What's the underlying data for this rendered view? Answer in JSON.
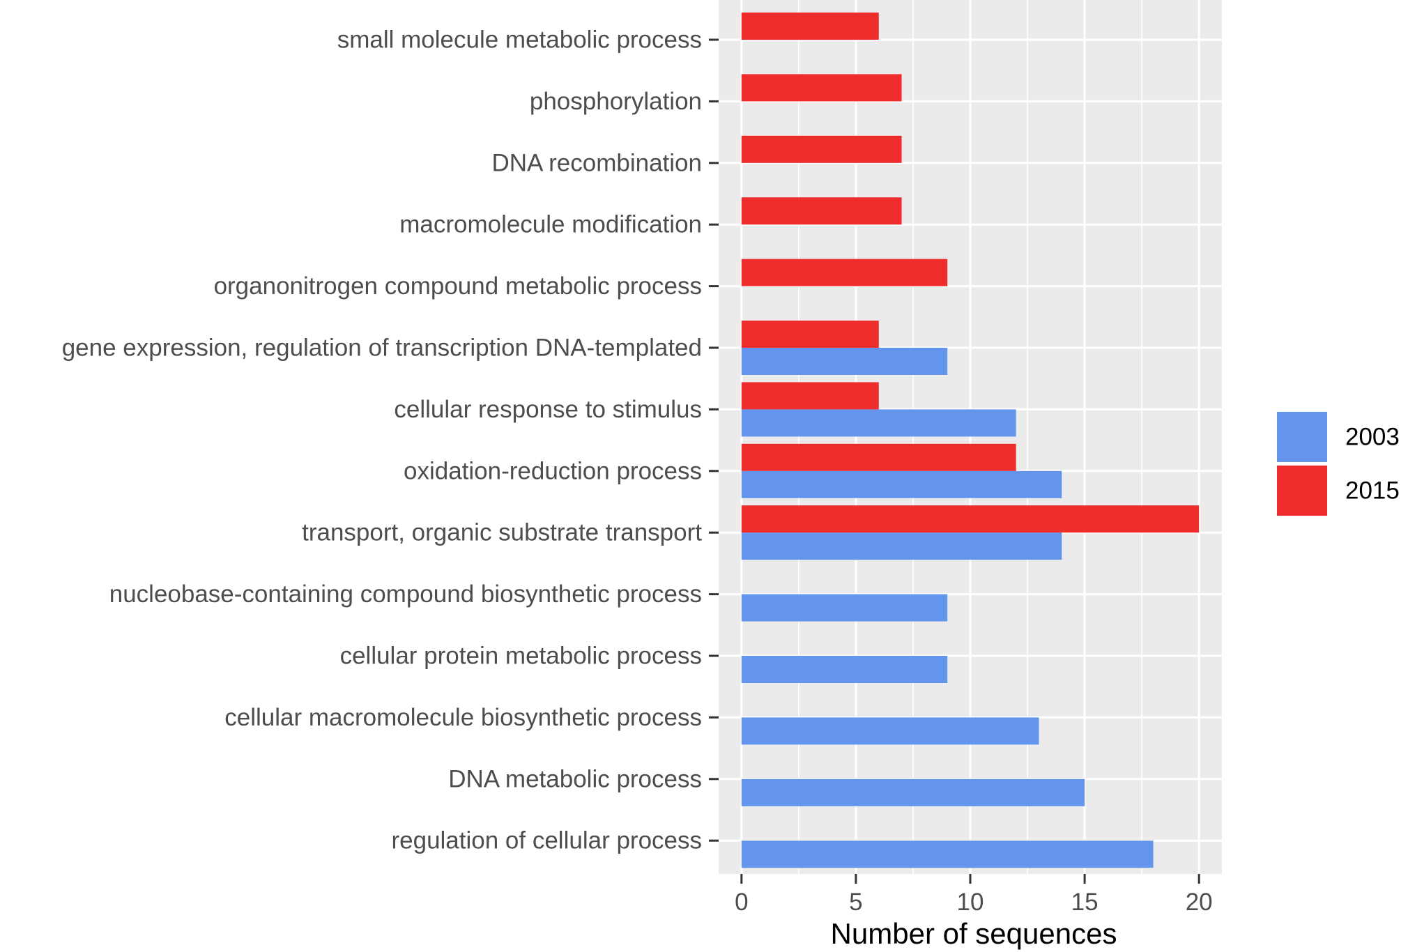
{
  "chart_data": {
    "type": "bar",
    "orientation": "horizontal",
    "title": "",
    "xlabel": "Number of sequences",
    "ylabel": "",
    "xlim": [
      -1,
      21
    ],
    "xticks": [
      0,
      5,
      10,
      15,
      20
    ],
    "grid": true,
    "legend_position": "right",
    "categories": [
      "small molecule metabolic process",
      "phosphorylation",
      "DNA recombination",
      "macromolecule modification",
      "organonitrogen compound metabolic process",
      "gene expression, regulation of transcription DNA-templated",
      "cellular response to stimulus",
      "oxidation-reduction process",
      "transport, organic substrate transport",
      "nucleobase-containing compound biosynthetic process",
      "cellular protein metabolic process",
      "cellular macromolecule biosynthetic process",
      "DNA metabolic process",
      "regulation of cellular process"
    ],
    "series": [
      {
        "name": "2003",
        "color": "#6495ED",
        "values": [
          null,
          null,
          null,
          null,
          null,
          9,
          12,
          14,
          14,
          9,
          9,
          13,
          15,
          18
        ]
      },
      {
        "name": "2015",
        "color": "#EE2C2C",
        "values": [
          6,
          7,
          7,
          7,
          9,
          6,
          6,
          12,
          20,
          null,
          null,
          null,
          null,
          null
        ]
      }
    ],
    "colors": {
      "panel_background": "#EBEBEB",
      "grid": "#FFFFFF",
      "tick": "#333333"
    }
  }
}
